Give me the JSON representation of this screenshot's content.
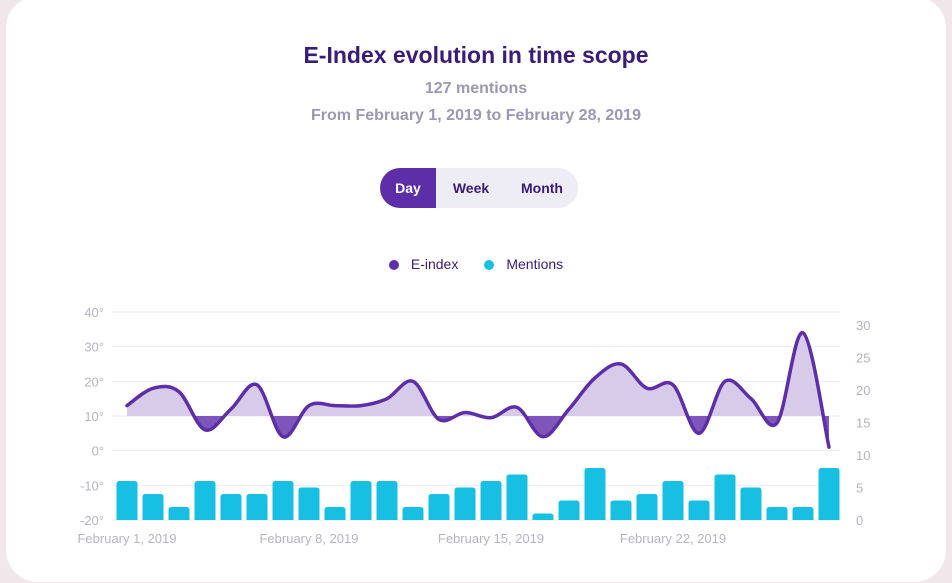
{
  "title": "E-Index evolution in time scope",
  "mentions_count": "127 mentions",
  "date_range": "From February 1, 2019 to February 28, 2019",
  "toggle": {
    "options": [
      "Day",
      "Week",
      "Month"
    ],
    "selected": "Day"
  },
  "colors": {
    "eindex": "#5d2ea8",
    "eindex_fill": "#d7cbe9",
    "eindex_fill_below": "#7e55bb",
    "mentions": "#17c0e2"
  },
  "chart_data": {
    "type": "bar+line",
    "legend": [
      "E-index",
      "Mentions"
    ],
    "legend_position": "top",
    "x_tick_labels": [
      "February 1, 2019",
      "February 8, 2019",
      "February 15, 2019",
      "February 22, 2019"
    ],
    "left_axis": {
      "ticks": [
        "40°",
        "30°",
        "20°",
        "10°",
        "0°",
        "-10°",
        "-20°"
      ],
      "range": [
        -20,
        40
      ],
      "baseline": 10
    },
    "right_axis": {
      "ticks": [
        "30",
        "25",
        "20",
        "15",
        "10",
        "5",
        "0"
      ],
      "range": [
        0,
        30
      ]
    },
    "series": [
      {
        "name": "E-index",
        "axis": "left",
        "type": "area-line",
        "values": [
          13,
          18,
          17,
          6,
          12,
          19,
          4,
          13,
          13,
          13,
          15,
          20,
          9,
          11,
          9.5,
          12.5,
          4,
          12,
          21,
          25,
          18,
          19,
          5,
          20,
          15,
          8,
          34,
          1
        ]
      },
      {
        "name": "Mentions",
        "axis": "right",
        "type": "bar",
        "values": [
          6,
          4,
          2,
          6,
          4,
          4,
          6,
          5,
          2,
          6,
          6,
          2,
          4,
          5,
          6,
          7,
          1,
          3,
          8,
          3,
          4,
          6,
          3,
          7,
          5,
          2,
          2,
          8
        ]
      }
    ],
    "grid": true
  }
}
